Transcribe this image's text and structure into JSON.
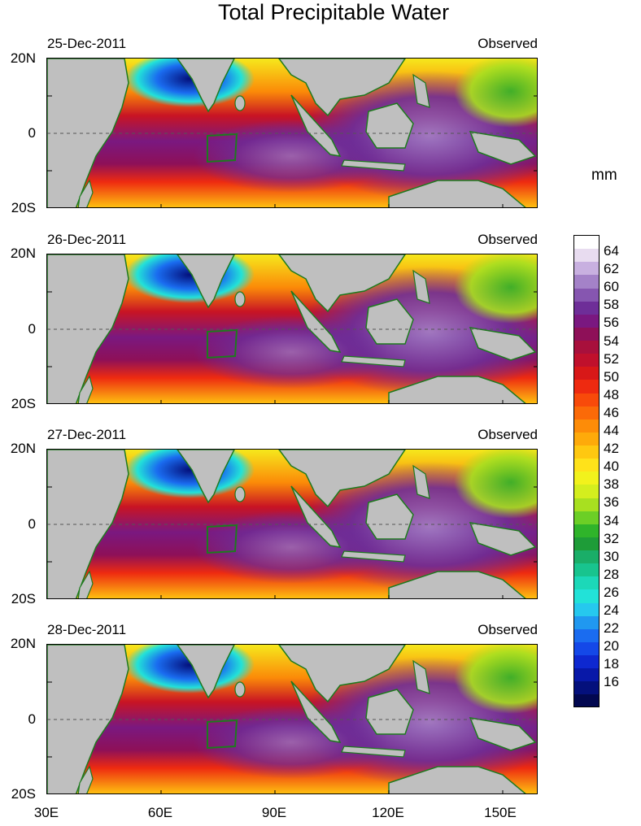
{
  "title": "Total Precipitable Water",
  "unit": "mm",
  "panels": [
    {
      "date": "25-Dec-2011",
      "label": "Observed"
    },
    {
      "date": "26-Dec-2011",
      "label": "Observed"
    },
    {
      "date": "27-Dec-2011",
      "label": "Observed"
    },
    {
      "date": "28-Dec-2011",
      "label": "Observed"
    }
  ],
  "lat_labels": [
    "20N",
    "0",
    "20S"
  ],
  "lon_labels": [
    "30E",
    "60E",
    "90E",
    "120E",
    "150E"
  ],
  "colorbar": {
    "labels": [
      "64",
      "62",
      "60",
      "58",
      "56",
      "54",
      "52",
      "50",
      "48",
      "46",
      "44",
      "42",
      "40",
      "38",
      "36",
      "34",
      "32",
      "30",
      "28",
      "26",
      "24",
      "22",
      "20",
      "18",
      "16"
    ],
    "colors": [
      "#ffffff",
      "#e8dcf0",
      "#c8b0e0",
      "#a482c8",
      "#8656b0",
      "#6e2e98",
      "#7a1880",
      "#8e1058",
      "#a8103c",
      "#c0102c",
      "#d81818",
      "#ee2a10",
      "#f84a0a",
      "#fb6a08",
      "#fd8c08",
      "#feaa0a",
      "#ffc810",
      "#ffe21a",
      "#f2f21c",
      "#d4ee1e",
      "#a8e020",
      "#6ccf26",
      "#2fb42a",
      "#1e9c38",
      "#1aae68",
      "#18c48e",
      "#1cd8b8",
      "#22e2d8",
      "#26c8ee",
      "#2098f0",
      "#1a6cf0",
      "#1448e8",
      "#0e28d0",
      "#0818a8",
      "#04107c",
      "#020850"
    ]
  },
  "colors": {
    "land": "#bfbfbf",
    "coast": "#1e7a1e",
    "box": "#1e7a1e"
  }
}
